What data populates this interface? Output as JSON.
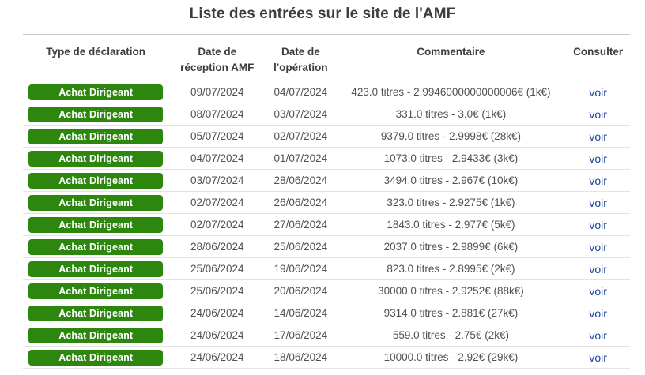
{
  "title": "Liste des entrées sur le site de l'AMF",
  "colors": {
    "badge_green": "#2d870f",
    "link_blue": "#19439c",
    "header_text": "#3d3d3d",
    "cell_text": "#515151",
    "row_border": "#e3e3e3",
    "table_top_border": "#c9c9c9"
  },
  "table": {
    "columns": [
      "Type de déclaration",
      "Date de réception AMF",
      "Date de l'opération",
      "Commentaire",
      "Consulter"
    ],
    "rows": [
      {
        "type": "Achat Dirigeant",
        "reception": "09/07/2024",
        "operation": "04/07/2024",
        "comment": "423.0 titres - 2.9946000000000006€ (1k€)",
        "link": "voir"
      },
      {
        "type": "Achat Dirigeant",
        "reception": "08/07/2024",
        "operation": "03/07/2024",
        "comment": "331.0 titres - 3.0€ (1k€)",
        "link": "voir"
      },
      {
        "type": "Achat Dirigeant",
        "reception": "05/07/2024",
        "operation": "02/07/2024",
        "comment": "9379.0 titres - 2.9998€ (28k€)",
        "link": "voir"
      },
      {
        "type": "Achat Dirigeant",
        "reception": "04/07/2024",
        "operation": "01/07/2024",
        "comment": "1073.0 titres - 2.9433€ (3k€)",
        "link": "voir"
      },
      {
        "type": "Achat Dirigeant",
        "reception": "03/07/2024",
        "operation": "28/06/2024",
        "comment": "3494.0 titres - 2.967€ (10k€)",
        "link": "voir"
      },
      {
        "type": "Achat Dirigeant",
        "reception": "02/07/2024",
        "operation": "26/06/2024",
        "comment": "323.0 titres - 2.9275€ (1k€)",
        "link": "voir"
      },
      {
        "type": "Achat Dirigeant",
        "reception": "02/07/2024",
        "operation": "27/06/2024",
        "comment": "1843.0 titres - 2.977€ (5k€)",
        "link": "voir"
      },
      {
        "type": "Achat Dirigeant",
        "reception": "28/06/2024",
        "operation": "25/06/2024",
        "comment": "2037.0 titres - 2.9899€ (6k€)",
        "link": "voir"
      },
      {
        "type": "Achat Dirigeant",
        "reception": "25/06/2024",
        "operation": "19/06/2024",
        "comment": "823.0 titres - 2.8995€ (2k€)",
        "link": "voir"
      },
      {
        "type": "Achat Dirigeant",
        "reception": "25/06/2024",
        "operation": "20/06/2024",
        "comment": "30000.0 titres - 2.9252€ (88k€)",
        "link": "voir"
      },
      {
        "type": "Achat Dirigeant",
        "reception": "24/06/2024",
        "operation": "14/06/2024",
        "comment": "9314.0 titres - 2.881€ (27k€)",
        "link": "voir"
      },
      {
        "type": "Achat Dirigeant",
        "reception": "24/06/2024",
        "operation": "17/06/2024",
        "comment": "559.0 titres - 2.75€ (2k€)",
        "link": "voir"
      },
      {
        "type": "Achat Dirigeant",
        "reception": "24/06/2024",
        "operation": "18/06/2024",
        "comment": "10000.0 titres - 2.92€ (29k€)",
        "link": "voir"
      }
    ]
  }
}
